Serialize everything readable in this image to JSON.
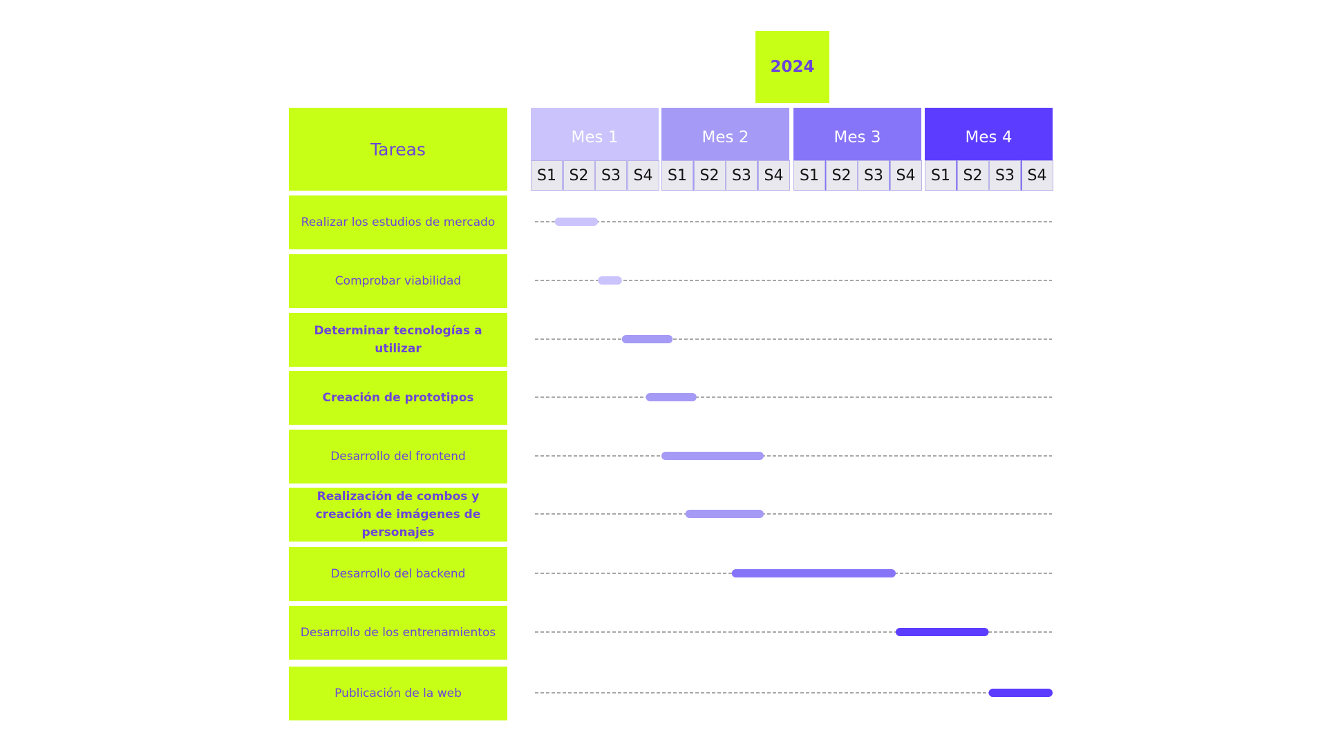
{
  "year": "2024",
  "tasks_header": "Tareas",
  "months": [
    {
      "label": "Mes 1",
      "color": "#cbc3fb"
    },
    {
      "label": "Mes 2",
      "color": "#a59af5"
    },
    {
      "label": "Mes 3",
      "color": "#8775f9"
    },
    {
      "label": "Mes 4",
      "color": "#5c3dff"
    }
  ],
  "week_labels": [
    "S1",
    "S2",
    "S3",
    "S4"
  ],
  "tasks": [
    {
      "label": "Realizar los estudios de mercado",
      "bold": false,
      "start_week": 0.75,
      "end_week": 2.1,
      "color": "#cbc3fb"
    },
    {
      "label": "Comprobar viabilidad",
      "bold": false,
      "start_week": 2.1,
      "end_week": 2.85,
      "color": "#cbc3fb"
    },
    {
      "label": "Determinar tecnologías a utilizar",
      "bold": true,
      "start_week": 2.85,
      "end_week": 4.35,
      "color": "#a59af5"
    },
    {
      "label": "Creación de prototipos",
      "bold": true,
      "start_week": 3.6,
      "end_week": 5.1,
      "color": "#a59af5"
    },
    {
      "label": "Desarrollo del frontend",
      "bold": false,
      "start_week": 4.0,
      "end_week": 7.2,
      "color": "#a59af5"
    },
    {
      "label": "Realización de combos y creación de imágenes de personajes",
      "bold": true,
      "start_week": 4.75,
      "end_week": 7.2,
      "color": "#a59af5"
    },
    {
      "label": "Desarrollo del backend",
      "bold": false,
      "start_week": 6.2,
      "end_week": 11.2,
      "color": "#8775f9"
    },
    {
      "label": "Desarrollo de los entrenamientos",
      "bold": false,
      "start_week": 11.2,
      "end_week": 14.0,
      "color": "#5c3dff"
    },
    {
      "label": "Publicación de la web",
      "bold": false,
      "start_week": 14.0,
      "end_week": 16.0,
      "color": "#5c3dff"
    }
  ]
}
